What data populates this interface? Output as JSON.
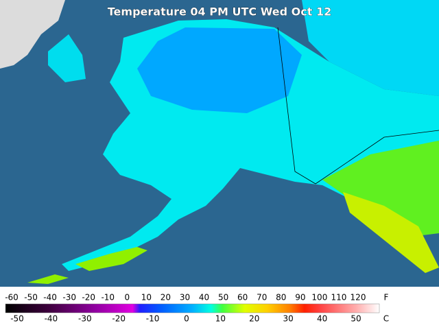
{
  "title": "Temperature 04 PM UTC Wed Oct 12",
  "legend": {
    "fahrenheit": {
      "labels": [
        -60,
        -50,
        -40,
        -30,
        -20,
        -10,
        0,
        10,
        20,
        30,
        40,
        50,
        60,
        70,
        80,
        90,
        100,
        110,
        120
      ],
      "unit": "F"
    },
    "celsius": {
      "labels": [
        -50,
        -40,
        -30,
        -20,
        -10,
        0,
        10,
        20,
        30,
        40,
        50
      ],
      "unit": "C"
    }
  }
}
